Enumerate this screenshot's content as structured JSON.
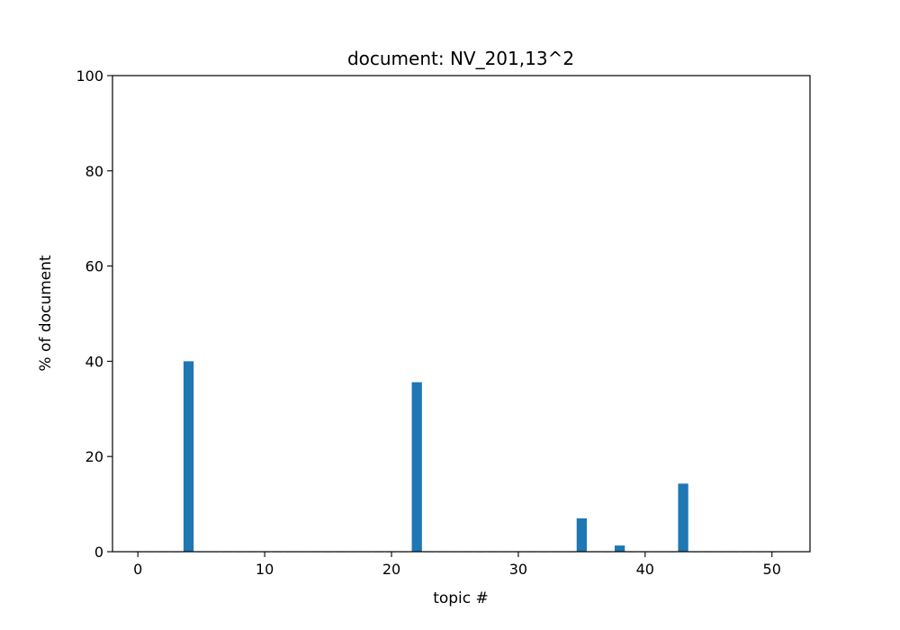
{
  "chart_data": {
    "type": "bar",
    "title": "document: NV_201,13^2",
    "xlabel": "topic #",
    "ylabel": "% of document",
    "xlim": [
      -2,
      53
    ],
    "ylim": [
      0,
      100
    ],
    "xticks": [
      0,
      10,
      20,
      30,
      40,
      50
    ],
    "yticks": [
      0,
      20,
      40,
      60,
      80,
      100
    ],
    "grid": false,
    "bar_color": "#1f77b4",
    "bar_width": 0.8,
    "x": [
      0,
      1,
      2,
      3,
      4,
      5,
      6,
      7,
      8,
      9,
      10,
      11,
      12,
      13,
      14,
      15,
      16,
      17,
      18,
      19,
      20,
      21,
      22,
      23,
      24,
      25,
      26,
      27,
      28,
      29,
      30,
      31,
      32,
      33,
      34,
      35,
      36,
      37,
      38,
      39,
      40,
      41,
      42,
      43,
      44,
      45,
      46,
      47,
      48,
      49,
      50
    ],
    "values": [
      0,
      0,
      0,
      0,
      40,
      0,
      0,
      0,
      0,
      0,
      0,
      0,
      0,
      0,
      0,
      0,
      0,
      0,
      0,
      0,
      0,
      0,
      35.6,
      0,
      0,
      0,
      0,
      0,
      0,
      0,
      0,
      0,
      0,
      0,
      0,
      7,
      0,
      0,
      1.3,
      0,
      0,
      0,
      0,
      14.3,
      0,
      0,
      0,
      0,
      0,
      0,
      0
    ]
  }
}
